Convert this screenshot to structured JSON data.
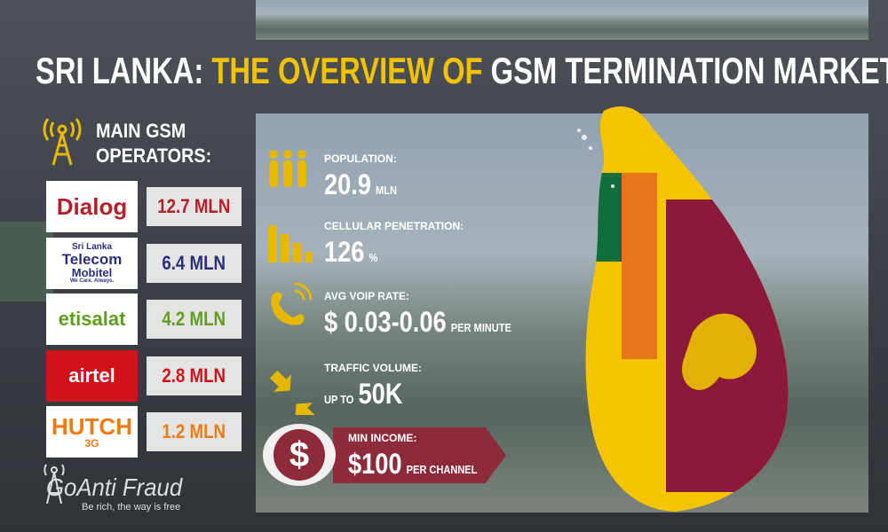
{
  "header": {
    "title_lead": "SRI LANKA:",
    "title_mid": "THE OVERVIEW OF",
    "title_end": "GSM TERMINATION MARKET"
  },
  "operators_heading": {
    "line1": "MAIN GSM",
    "line2": "OPERATORS:"
  },
  "operators": [
    {
      "logo": [
        "Dialog"
      ],
      "subscribers": "12.7 MLN",
      "color": "#b3202a"
    },
    {
      "logo": [
        "Sri Lanka",
        "Telecom",
        "Mobitel",
        "We Care. Always."
      ],
      "subscribers": "6.4 MLN",
      "color": "#2b2f7a"
    },
    {
      "logo": [
        "etisalat"
      ],
      "subscribers": "4.2 MLN",
      "color": "#5f9e1f"
    },
    {
      "logo": [
        "airtel"
      ],
      "subscribers": "2.8 MLN",
      "color": "#d0121b"
    },
    {
      "logo": [
        "HUTCH",
        "3G"
      ],
      "subscribers": "1.2 MLN",
      "color": "#ee7a12"
    }
  ],
  "stats": [
    {
      "label": "POPULATION:",
      "value": "20.9",
      "unit": "MLN"
    },
    {
      "label": "CELLULAR PENETRATION:",
      "value": "126",
      "unit": "%"
    },
    {
      "label": "AVG VOIP RATE:",
      "value": "$ 0.03-0.06",
      "unit": "PER MINUTE"
    },
    {
      "label": "TRAFFIC VOLUME:",
      "prefix": "UP TO",
      "value": "50K"
    }
  ],
  "income": {
    "symbol": "$",
    "label": "MIN INCOME:",
    "value": "$100",
    "unit": "PER CHANNEL"
  },
  "brand": {
    "name": "GoAnti Fraud",
    "slogan": "Be rich, the way is free"
  }
}
